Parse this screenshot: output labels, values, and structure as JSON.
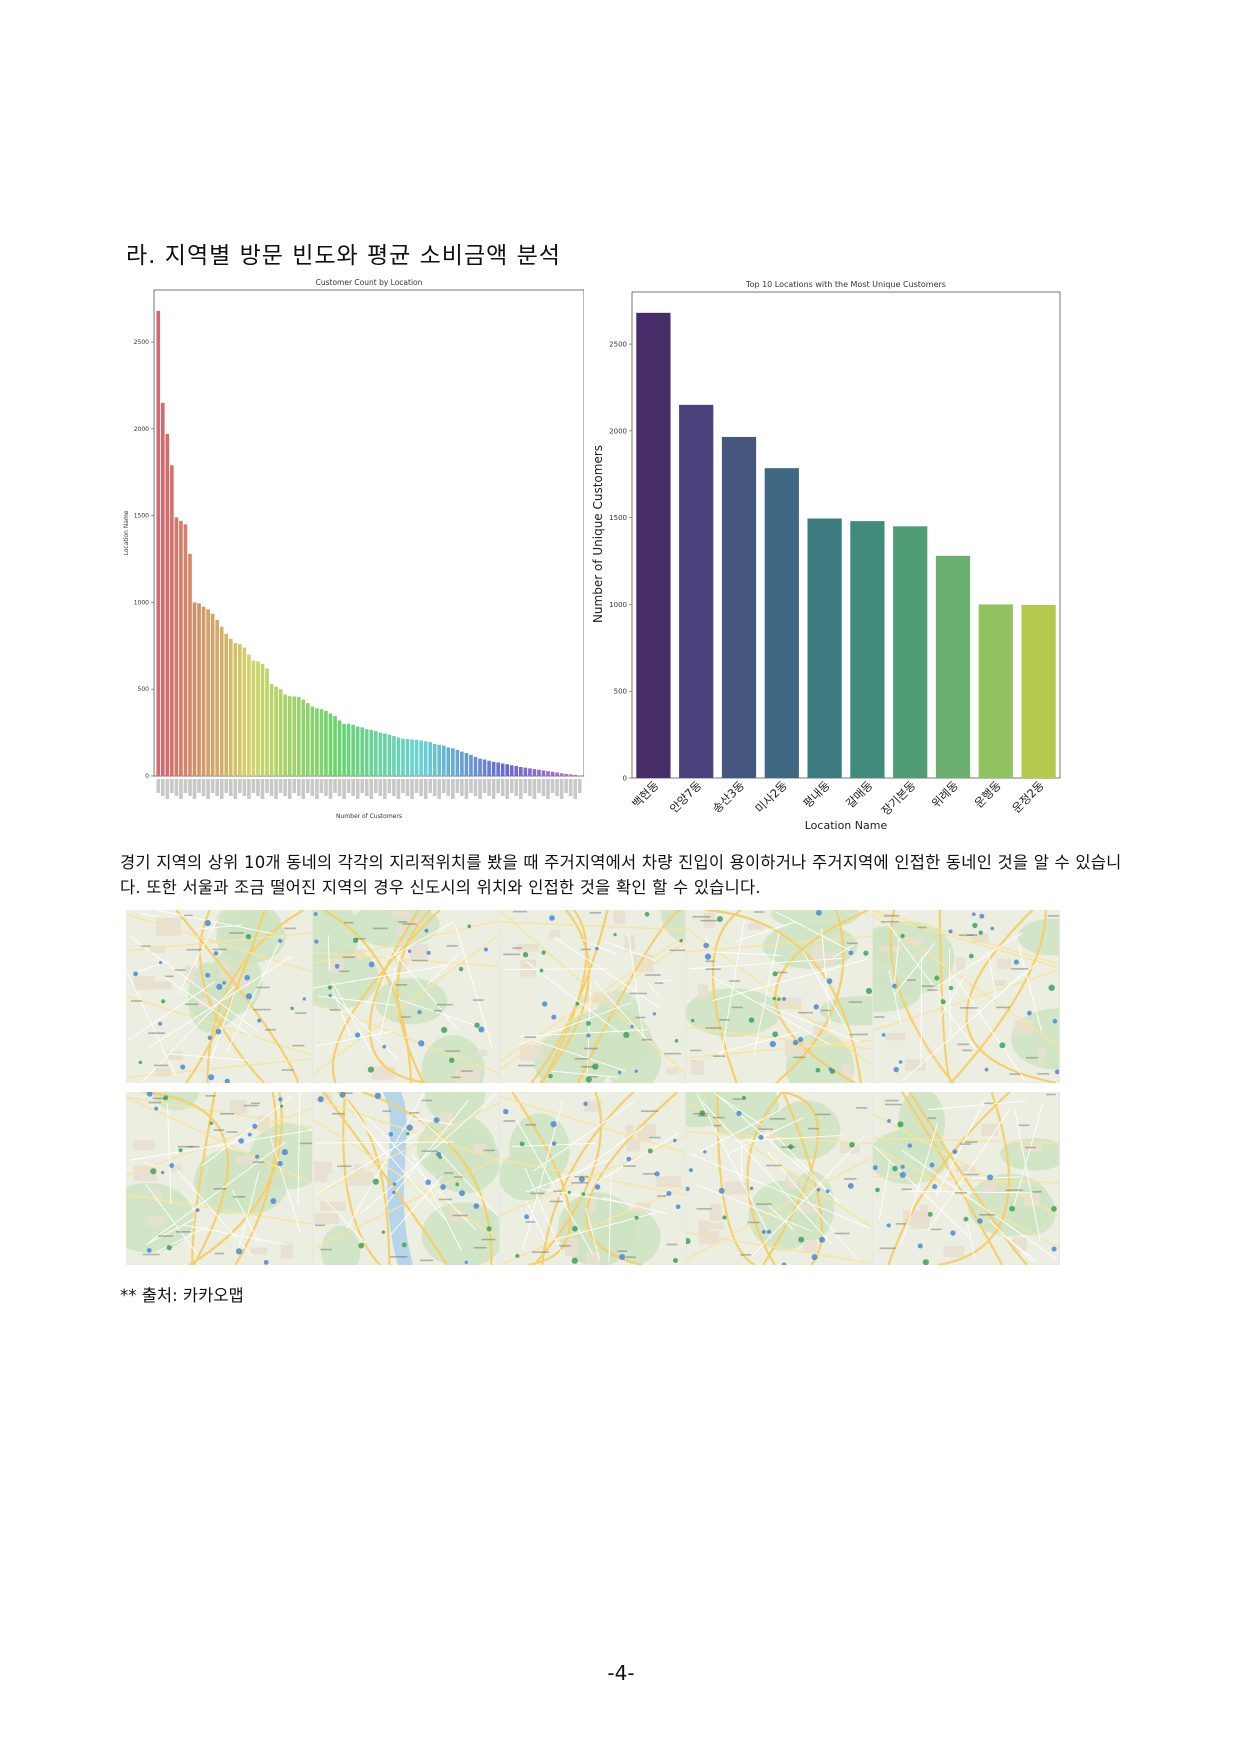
{
  "heading": "라. 지역별 방문 빈도와 평균 소비금액 분석",
  "paragraph": "경기 지역의 상위 10개 동네의 각각의 지리적위치를 봤을 때 주거지역에서 차량 진입이 용이하거나 주거지역에 인접한 동네인 것을 알 수 있습니다. 또한 서울과 조금 떨어진 지역의 경우 신도시의 위치와 인접한 것을 확인 할 수 있습니다.",
  "source_note": "** 출처: 카카오맵",
  "page_number": "-4-",
  "chart_data": [
    {
      "type": "bar",
      "title": "Customer Count by Location",
      "xlabel": "Number of Customers",
      "ylabel": "Location Name",
      "ylim": [
        0,
        2800
      ],
      "yticks": [
        0,
        500,
        1000,
        1500,
        2000,
        2500
      ],
      "palette": "husl",
      "values": [
        2680,
        2150,
        1970,
        1790,
        1490,
        1470,
        1450,
        1280,
        1000,
        995,
        975,
        960,
        935,
        900,
        860,
        820,
        790,
        765,
        760,
        740,
        700,
        665,
        660,
        645,
        620,
        530,
        515,
        500,
        470,
        460,
        458,
        456,
        440,
        420,
        400,
        390,
        385,
        375,
        360,
        345,
        320,
        300,
        300,
        295,
        285,
        280,
        270,
        265,
        258,
        250,
        245,
        238,
        230,
        222,
        215,
        213,
        210,
        208,
        205,
        200,
        195,
        185,
        180,
        175,
        165,
        160,
        150,
        140,
        132,
        122,
        110,
        100,
        95,
        88,
        82,
        78,
        72,
        68,
        62,
        58,
        52,
        48,
        44,
        40,
        36,
        32,
        28,
        24,
        20,
        16,
        12,
        9,
        6,
        3
      ]
    },
    {
      "type": "bar",
      "title": "Top 10 Locations with the Most Unique Customers",
      "xlabel": "Location Name",
      "ylabel": "Number of Unique Customers",
      "ylim": [
        0,
        2800
      ],
      "yticks": [
        0,
        500,
        1000,
        1500,
        2000,
        2500
      ],
      "categories": [
        "백현동",
        "안양7동",
        "송산3동",
        "미사2동",
        "평내동",
        "갈매동",
        "장기본동",
        "위례동",
        "운행동",
        "운정2동"
      ],
      "values": [
        2680,
        2150,
        1965,
        1785,
        1495,
        1480,
        1450,
        1280,
        1000,
        997
      ],
      "colors": [
        "#472d67",
        "#48417c",
        "#45567f",
        "#3f6882",
        "#3b7b80",
        "#408b7c",
        "#4f9c77",
        "#6bb071",
        "#92c25f",
        "#b6c94f"
      ]
    }
  ],
  "map_tiles": [
    {
      "id": "map-1"
    },
    {
      "id": "map-2"
    },
    {
      "id": "map-3"
    },
    {
      "id": "map-4"
    },
    {
      "id": "map-5"
    },
    {
      "id": "map-6"
    },
    {
      "id": "map-7"
    },
    {
      "id": "map-8"
    },
    {
      "id": "map-9"
    },
    {
      "id": "map-10"
    }
  ]
}
